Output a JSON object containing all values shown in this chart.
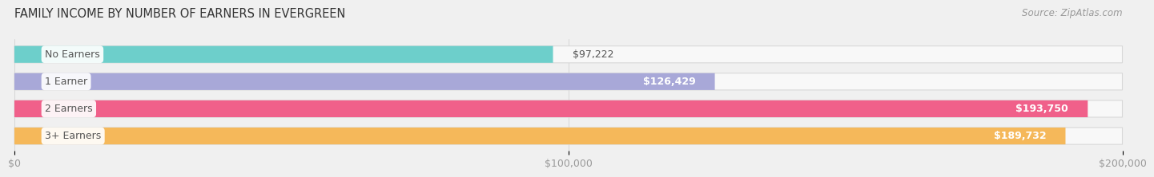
{
  "title": "FAMILY INCOME BY NUMBER OF EARNERS IN EVERGREEN",
  "source": "Source: ZipAtlas.com",
  "categories": [
    "No Earners",
    "1 Earner",
    "2 Earners",
    "3+ Earners"
  ],
  "values": [
    97222,
    126429,
    193750,
    189732
  ],
  "bar_colors": [
    "#6dcfcb",
    "#a8a8d8",
    "#f0608a",
    "#f5b85a"
  ],
  "xlim": [
    0,
    200000
  ],
  "xticks": [
    0,
    100000,
    200000
  ],
  "xtick_labels": [
    "$0",
    "$100,000",
    "$200,000"
  ],
  "value_labels": [
    "$97,222",
    "$126,429",
    "$193,750",
    "$189,732"
  ],
  "value_label_inside": [
    false,
    true,
    true,
    true
  ],
  "title_fontsize": 10.5,
  "source_fontsize": 8.5,
  "tick_fontsize": 9,
  "bar_label_fontsize": 9,
  "category_fontsize": 9,
  "background_color": "#f0f0f0"
}
